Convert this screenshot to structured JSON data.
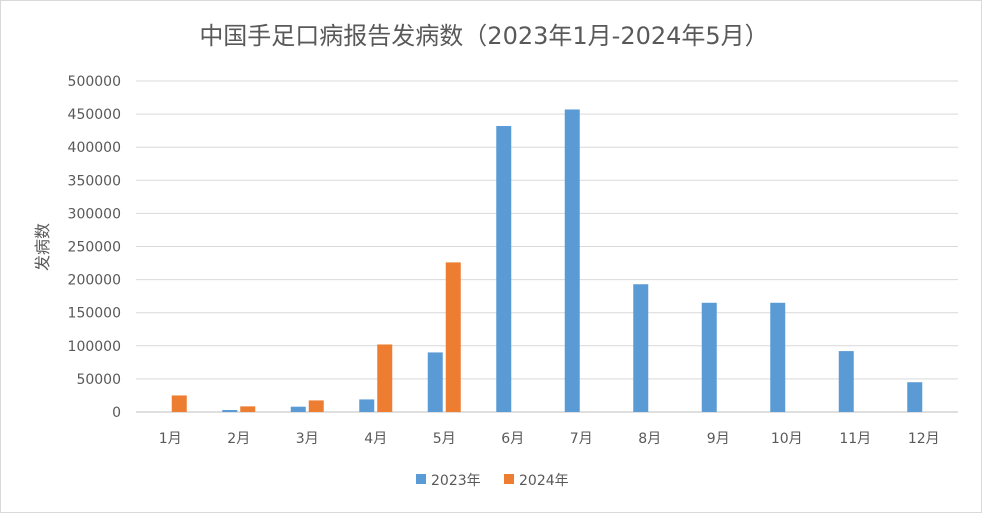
{
  "chart_data": {
    "type": "bar",
    "title": "中国手足口病报告发病数（2023年1月-2024年5月）",
    "xlabel": "",
    "ylabel": "发病数",
    "categories": [
      "1月",
      "2月",
      "3月",
      "4月",
      "5月",
      "6月",
      "7月",
      "8月",
      "9月",
      "10月",
      "11月",
      "12月"
    ],
    "ylim": [
      0,
      500000
    ],
    "yticks": [
      0,
      50000,
      100000,
      150000,
      200000,
      250000,
      300000,
      350000,
      400000,
      450000,
      500000
    ],
    "ytick_labels": [
      "0",
      "50000",
      "100000",
      "150000",
      "200000",
      "250000",
      "300000",
      "350000",
      "400000",
      "450000",
      "500000"
    ],
    "grid": true,
    "legend_position": "bottom",
    "series": [
      {
        "name": "2023年",
        "color": "#5b9bd5",
        "values": [
          null,
          3000,
          8000,
          19000,
          90000,
          432000,
          457000,
          193000,
          165000,
          165000,
          92000,
          45000
        ]
      },
      {
        "name": "2024年",
        "color": "#ed7d31",
        "values": [
          25000,
          8500,
          17500,
          102000,
          226000,
          null,
          null,
          null,
          null,
          null,
          null,
          null
        ]
      }
    ]
  }
}
